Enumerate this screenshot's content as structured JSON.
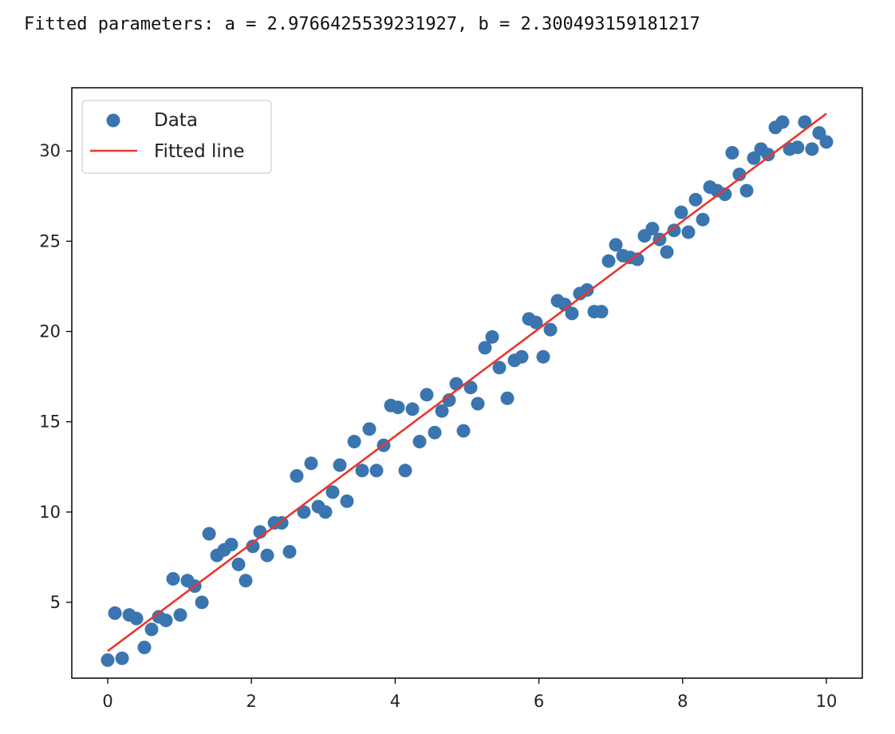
{
  "output": {
    "text": "Fitted parameters: a = 2.9766425539231927, b = 2.300493159181217"
  },
  "chart_data": {
    "type": "scatter",
    "title": "",
    "xlabel": "",
    "ylabel": "",
    "xlim": [
      -0.5,
      10.5
    ],
    "ylim": [
      0.8,
      33.5
    ],
    "xticks": [
      0,
      2,
      4,
      6,
      8,
      10
    ],
    "yticks": [
      5,
      10,
      15,
      20,
      25,
      30
    ],
    "grid": false,
    "legend_position": "top-left",
    "colors": {
      "scatter": "#3a75b0",
      "line": "#e8372c"
    },
    "series": [
      {
        "name": "Data",
        "kind": "scatter",
        "x": [
          0.0,
          0.1,
          0.2,
          0.3,
          0.4,
          0.51,
          0.61,
          0.71,
          0.81,
          0.91,
          1.01,
          1.11,
          1.21,
          1.31,
          1.41,
          1.52,
          1.62,
          1.72,
          1.82,
          1.92,
          2.02,
          2.12,
          2.22,
          2.32,
          2.42,
          2.53,
          2.63,
          2.73,
          2.83,
          2.93,
          3.03,
          3.13,
          3.23,
          3.33,
          3.43,
          3.54,
          3.64,
          3.74,
          3.84,
          3.94,
          4.04,
          4.14,
          4.24,
          4.34,
          4.44,
          4.55,
          4.65,
          4.75,
          4.85,
          4.95,
          5.05,
          5.15,
          5.25,
          5.35,
          5.45,
          5.56,
          5.66,
          5.76,
          5.86,
          5.96,
          6.06,
          6.16,
          6.26,
          6.36,
          6.46,
          6.57,
          6.67,
          6.77,
          6.87,
          6.97,
          7.07,
          7.17,
          7.27,
          7.37,
          7.47,
          7.58,
          7.68,
          7.78,
          7.88,
          7.98,
          8.08,
          8.18,
          8.28,
          8.38,
          8.48,
          8.59,
          8.69,
          8.79,
          8.89,
          8.99,
          9.09,
          9.19,
          9.29,
          9.39,
          9.49,
          9.6,
          9.7,
          9.8,
          9.9,
          10.0
        ],
        "y": [
          1.8,
          4.4,
          1.9,
          4.3,
          4.1,
          2.5,
          3.5,
          4.2,
          4.0,
          6.3,
          4.3,
          6.2,
          5.9,
          5.0,
          8.8,
          7.6,
          7.9,
          8.2,
          7.1,
          6.2,
          8.1,
          8.9,
          7.6,
          9.4,
          9.4,
          7.8,
          12.0,
          10.0,
          12.7,
          10.3,
          10.0,
          11.1,
          12.6,
          10.6,
          13.9,
          12.3,
          14.6,
          12.3,
          13.7,
          15.9,
          15.8,
          12.3,
          15.7,
          13.9,
          16.5,
          14.4,
          15.6,
          16.2,
          17.1,
          14.5,
          16.9,
          16.0,
          19.1,
          19.7,
          18.0,
          16.3,
          18.4,
          18.6,
          20.7,
          20.5,
          18.6,
          20.1,
          21.7,
          21.5,
          21.0,
          22.1,
          22.3,
          21.1,
          21.1,
          23.9,
          24.8,
          24.2,
          24.1,
          24.0,
          25.3,
          25.7,
          25.1,
          24.4,
          25.6,
          26.6,
          25.5,
          27.3,
          26.2,
          28.0,
          27.8,
          27.6,
          29.9,
          28.7,
          27.8,
          29.6,
          30.1,
          29.8,
          31.3,
          31.6,
          30.1,
          30.2,
          31.6,
          30.1,
          31.0,
          30.5
        ]
      },
      {
        "name": "Fitted line",
        "kind": "line",
        "x": [
          0,
          10
        ],
        "y": [
          2.3,
          32.07
        ]
      }
    ]
  }
}
